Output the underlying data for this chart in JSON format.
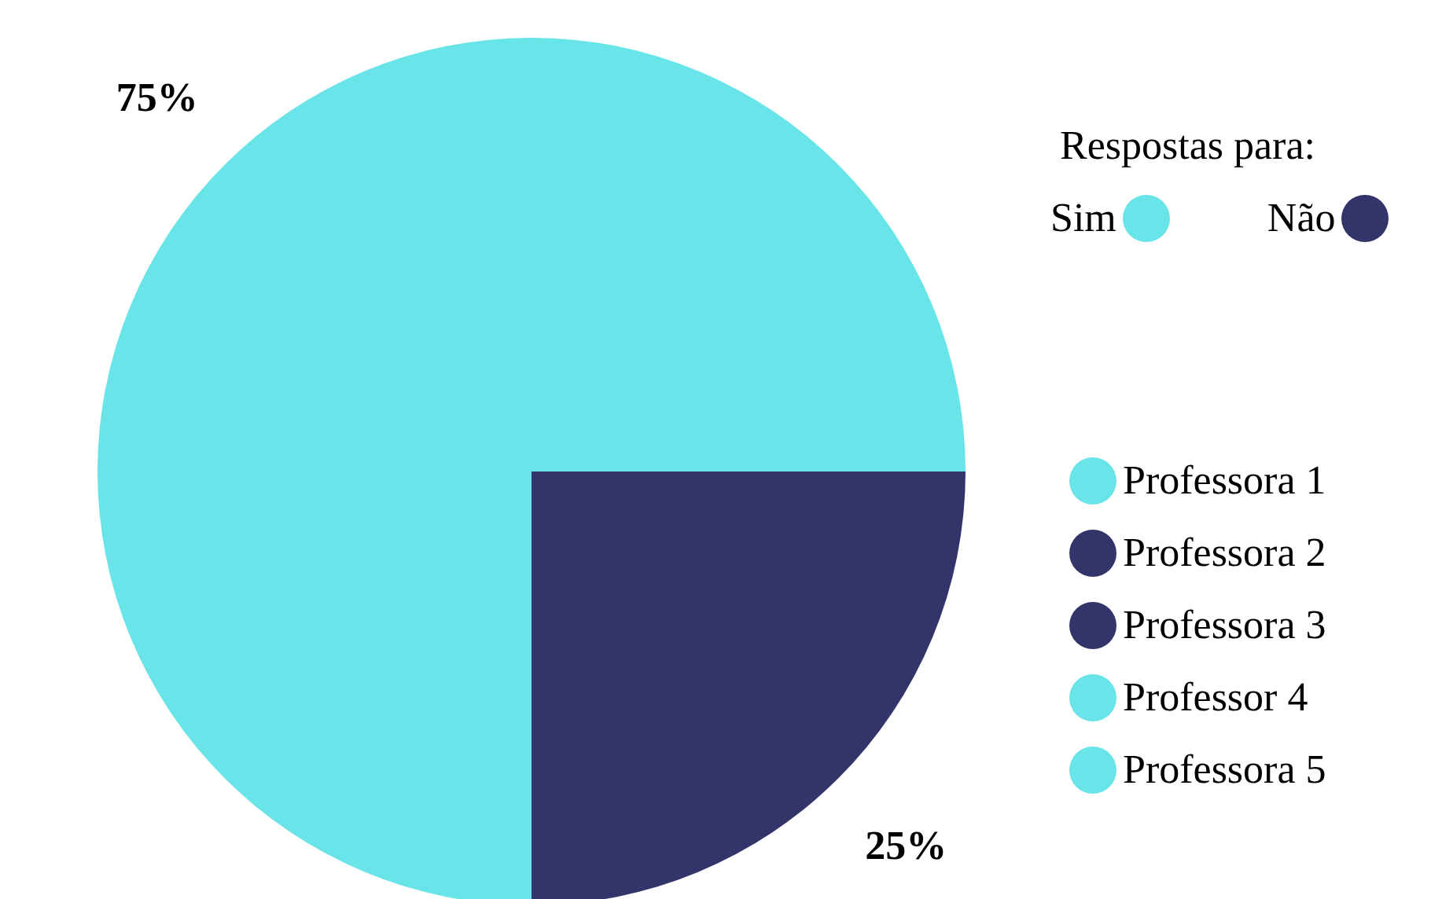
{
  "chart_data": {
    "type": "pie",
    "categories": [
      "Sim",
      "Não"
    ],
    "values": [
      75,
      25
    ],
    "colors": [
      "#69e4e8",
      "#32346a"
    ],
    "value_labels": [
      "75%",
      "25%"
    ],
    "legend_title": "Respostas para:",
    "legend": "top right",
    "annotations": [
      {
        "text": "Professora 1",
        "x": "Sim"
      },
      {
        "text": "Professora 2",
        "x": "Não"
      },
      {
        "text": "Professora 3",
        "x": "Não"
      },
      {
        "text": "Professor 4",
        "x": "Sim"
      },
      {
        "text": "Professora 5",
        "x": "Sim"
      }
    ]
  }
}
